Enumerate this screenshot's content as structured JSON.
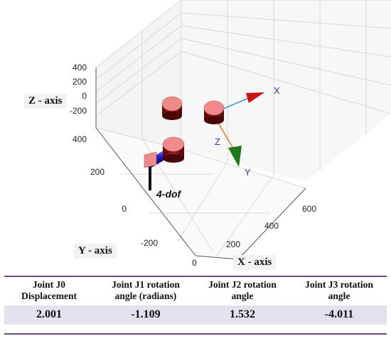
{
  "figure": {
    "axis_labels": {
      "z": "Z - axis",
      "y": "Y - axis",
      "x": "X - axis"
    },
    "z_ticks": [
      "400",
      "200",
      "0",
      "-200"
    ],
    "y_ticks": [
      "400",
      "200",
      "0",
      "-200"
    ],
    "x_ticks": [
      "0",
      "200",
      "400",
      "600"
    ],
    "robot_label": "4-dof",
    "frame_axes": [
      "X",
      "Y",
      "Z"
    ],
    "colors": {
      "link": "#1a1acc",
      "joint_cap": "#f08a8a",
      "joint_body": "#7a1010",
      "x_axis": "#cc1111",
      "y_axis": "#1a7a1a",
      "z_axis": "#3a9ad0"
    }
  },
  "table": {
    "headers": [
      [
        "Joint J0",
        "Displacement"
      ],
      [
        "Joint J1 rotation",
        "angle (radians)"
      ],
      [
        "Joint J2 rotation",
        "angle"
      ],
      [
        "Joint J3 rotation",
        "angle"
      ]
    ],
    "values": [
      "2.001",
      "-1.109",
      "1.532",
      "-4.011"
    ]
  }
}
